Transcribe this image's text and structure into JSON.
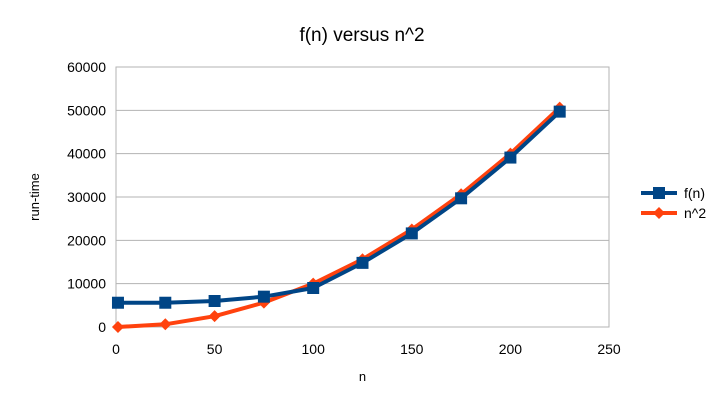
{
  "chart_data": {
    "type": "line",
    "title": "f(n) versus n^2",
    "xlabel": "n",
    "ylabel": "run-time",
    "xlim": [
      0,
      250
    ],
    "ylim": [
      0,
      60000
    ],
    "xticks": [
      0,
      50,
      100,
      150,
      200,
      250
    ],
    "yticks": [
      0,
      10000,
      20000,
      30000,
      40000,
      50000,
      60000
    ],
    "grid": "horizontal",
    "legend_position": "right",
    "series": [
      {
        "name": "f(n)",
        "color": "#004586",
        "marker": "square",
        "points": [
          {
            "x": 1,
            "y": 5600
          },
          {
            "x": 25,
            "y": 5600
          },
          {
            "x": 50,
            "y": 6000
          },
          {
            "x": 75,
            "y": 7000
          },
          {
            "x": 100,
            "y": 9000
          },
          {
            "x": 125,
            "y": 14800
          },
          {
            "x": 150,
            "y": 21600
          },
          {
            "x": 175,
            "y": 29700
          },
          {
            "x": 200,
            "y": 39100
          },
          {
            "x": 225,
            "y": 49700
          }
        ]
      },
      {
        "name": "n^2",
        "color": "#ff420e",
        "marker": "diamond",
        "points": [
          {
            "x": 1,
            "y": 1
          },
          {
            "x": 25,
            "y": 625
          },
          {
            "x": 50,
            "y": 2500
          },
          {
            "x": 75,
            "y": 5625
          },
          {
            "x": 100,
            "y": 10000
          },
          {
            "x": 125,
            "y": 15625
          },
          {
            "x": 150,
            "y": 22500
          },
          {
            "x": 175,
            "y": 30625
          },
          {
            "x": 200,
            "y": 40000
          },
          {
            "x": 225,
            "y": 50625
          }
        ]
      }
    ]
  }
}
